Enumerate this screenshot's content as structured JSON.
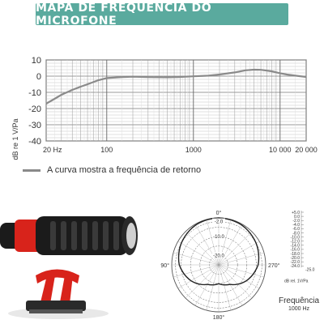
{
  "banner": {
    "title": "MAPA DE FREQUÊNCIA DO MICROFONE",
    "color": "#5aaa9e"
  },
  "chart_data": [
    {
      "type": "line",
      "title": "MAPA DE FREQUÊNCIA DO MICROFONE",
      "ylabel": "dB re 1 V/Pa",
      "xlabel": "",
      "x_scale": "log",
      "xlim": [
        20,
        20000
      ],
      "ylim": [
        -40,
        10
      ],
      "y_ticks": [
        10,
        0,
        -10,
        -20,
        -30,
        -40
      ],
      "x_ticks": [
        {
          "value": 20,
          "label": "20 Hz"
        },
        {
          "value": 100,
          "label": "100"
        },
        {
          "value": 1000,
          "label": "1000"
        },
        {
          "value": 10000,
          "label": "10 000"
        },
        {
          "value": 20000,
          "label": "20 000"
        }
      ],
      "grid": true,
      "legend_position": "bottom-left",
      "series": [
        {
          "name": "A curva mostra a frequência de retorno",
          "color": "#8a8a8a",
          "x": [
            20,
            25,
            30,
            40,
            50,
            60,
            80,
            100,
            150,
            200,
            300,
            500,
            700,
            1000,
            1500,
            2000,
            3000,
            4000,
            5000,
            6000,
            8000,
            10000,
            12000,
            15000,
            20000
          ],
          "y": [
            -17,
            -14,
            -11.5,
            -8.5,
            -6.5,
            -5,
            -2.5,
            -1.2,
            -0.6,
            -0.3,
            -0.6,
            -0.7,
            -0.5,
            -0.1,
            0.3,
            1,
            2.3,
            3.6,
            4,
            3.9,
            3,
            1.8,
            1,
            0.3,
            -0.5
          ]
        }
      ]
    },
    {
      "type": "polar",
      "title": "Frequência",
      "subtitle": "1000 Hz",
      "angle_labels": [
        "0°",
        "90°",
        "180°",
        "270°"
      ],
      "ring_labels": [
        "-2.0",
        "-10.0",
        "-20.0"
      ],
      "scale_unit": "dB rel. 1V/Pa",
      "scale_labels": [
        "+5.0",
        "0.0",
        "-2.0",
        "-4.0",
        "-6.0",
        "-8.0",
        "-10.0",
        "-12.0",
        "-14.0",
        "-16.0",
        "-18.0",
        "-20.0",
        "-22.0",
        "-24.0"
      ],
      "scale_side_label": "-25.0",
      "series": [
        {
          "angles": [
            0,
            30,
            60,
            90,
            120,
            150,
            180,
            210,
            240,
            270,
            300,
            330
          ],
          "levels_db": [
            0,
            -0.5,
            -2,
            -4,
            -8,
            -13,
            -15,
            -13,
            -8,
            -4,
            -2,
            -0.5
          ]
        }
      ]
    }
  ],
  "colors": {
    "curve": "#8a8a8a",
    "grid": "#9a9a9a",
    "polar_grid": "#555555",
    "mic_red": "#d8231b",
    "mic_body": "#1b1b1b"
  }
}
